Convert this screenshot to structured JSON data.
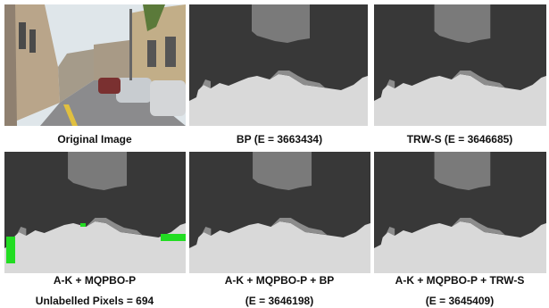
{
  "panels": [
    {
      "caption": [
        "Original Image"
      ]
    },
    {
      "caption": [
        "BP (E = 3663434)"
      ]
    },
    {
      "caption": [
        "TRW-S (E = 3646685)"
      ]
    },
    {
      "caption": [
        "A-K + MQPBO-P",
        "Unlabelled Pixels = 694"
      ]
    },
    {
      "caption": [
        "A-K + MQPBO-P + BP",
        "(E = 3646198)"
      ]
    },
    {
      "caption": [
        "A-K + MQPBO-P + TRW-S",
        "(E = 3645409)"
      ]
    }
  ]
}
